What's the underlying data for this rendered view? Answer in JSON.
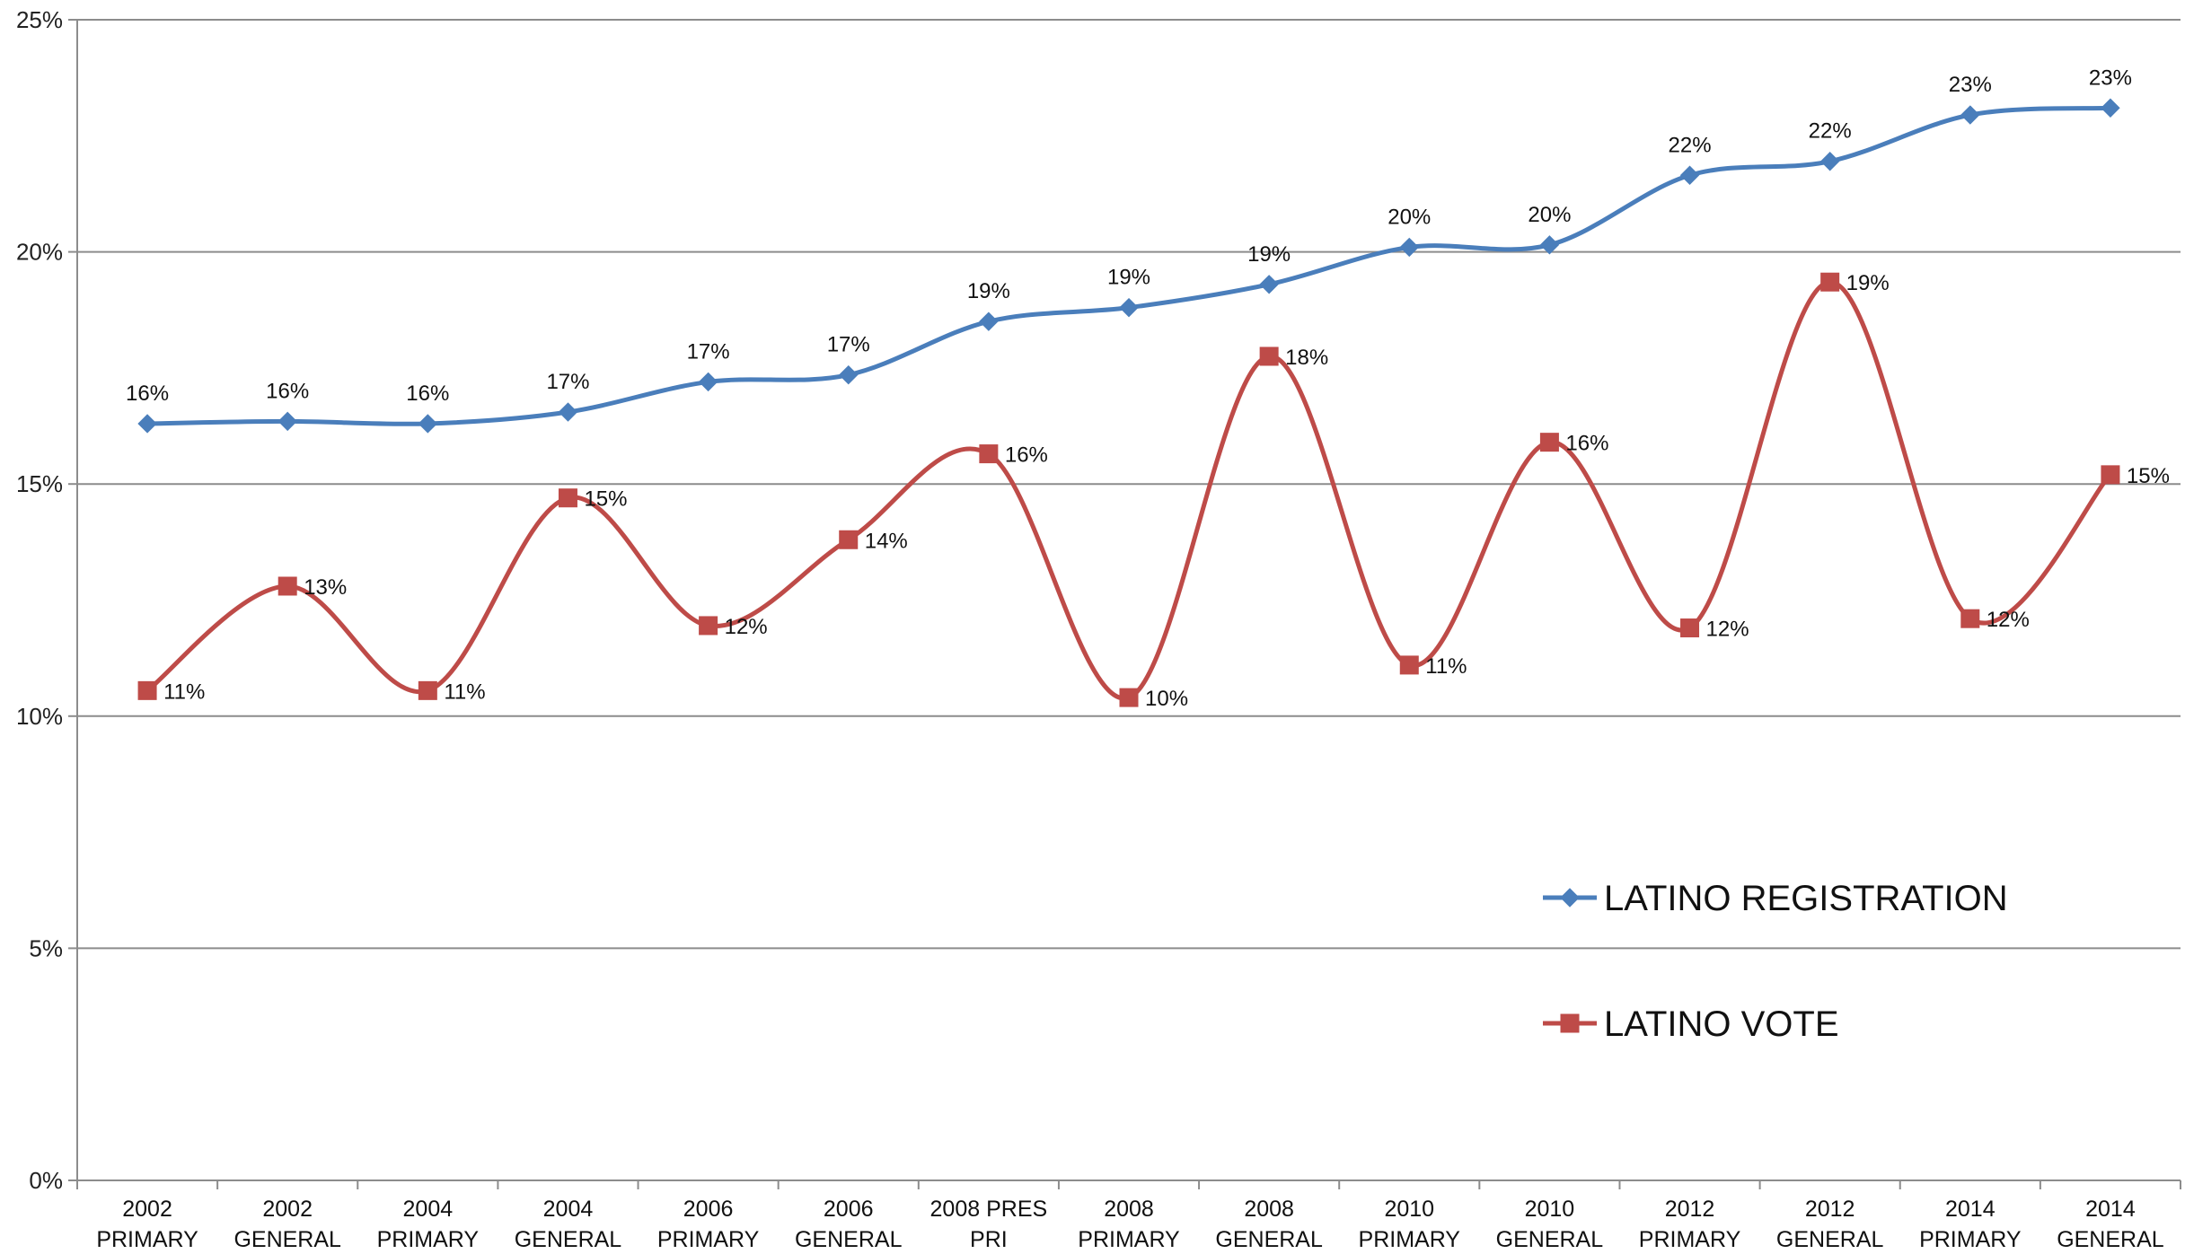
{
  "chart_data": {
    "type": "line",
    "categories": [
      [
        "2002",
        "PRIMARY"
      ],
      [
        "2002",
        "GENERAL"
      ],
      [
        "2004",
        "PRIMARY"
      ],
      [
        "2004",
        "GENERAL"
      ],
      [
        "2006",
        "PRIMARY"
      ],
      [
        "2006",
        "GENERAL"
      ],
      [
        "2008 PRES",
        "PRI"
      ],
      [
        "2008",
        "PRIMARY"
      ],
      [
        "2008",
        "GENERAL"
      ],
      [
        "2010",
        "PRIMARY"
      ],
      [
        "2010",
        "GENERAL"
      ],
      [
        "2012",
        "PRIMARY"
      ],
      [
        "2012",
        "GENERAL"
      ],
      [
        "2014",
        "PRIMARY"
      ],
      [
        "2014",
        "GENERAL"
      ]
    ],
    "ylim": [
      0,
      25
    ],
    "yticks": [
      0,
      5,
      10,
      15,
      20,
      25
    ],
    "ytick_labels": [
      "0%",
      "5%",
      "10%",
      "15%",
      "20%",
      "25%"
    ],
    "grid": true,
    "smooth": true,
    "legend_position": "bottom-right",
    "series": [
      {
        "name": "LATINO REGISTRATION",
        "color": "#4A7EBB",
        "marker": "diamond",
        "values": [
          16.3,
          16.35,
          16.3,
          16.55,
          17.2,
          17.35,
          18.5,
          18.8,
          19.3,
          20.1,
          20.15,
          21.65,
          21.95,
          22.95,
          23.1
        ],
        "labels": [
          "16%",
          "16%",
          "16%",
          "17%",
          "17%",
          "17%",
          "19%",
          "19%",
          "19%",
          "20%",
          "20%",
          "22%",
          "22%",
          "23%",
          "23%"
        ]
      },
      {
        "name": "LATINO VOTE",
        "color": "#BE4B48",
        "marker": "square",
        "values": [
          10.55,
          12.8,
          10.55,
          14.7,
          11.95,
          13.8,
          15.65,
          10.4,
          17.75,
          11.1,
          15.9,
          11.9,
          19.35,
          12.1,
          15.2
        ],
        "labels": [
          "11%",
          "13%",
          "11%",
          "15%",
          "12%",
          "14%",
          "16%",
          "10%",
          "18%",
          "11%",
          "16%",
          "12%",
          "19%",
          "12%",
          "15%"
        ]
      }
    ]
  }
}
